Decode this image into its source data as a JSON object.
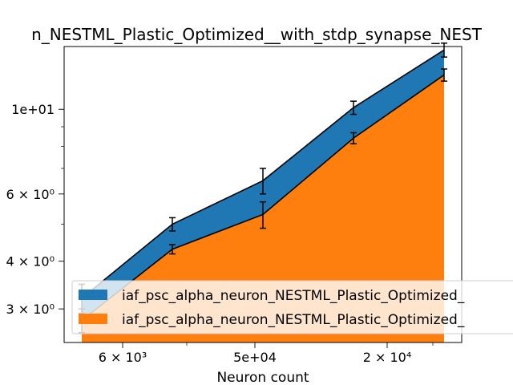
{
  "chart_data": {
    "type": "area",
    "title": "n_NESTML_Plastic_Optimized__with_stdp_synapse_NEST",
    "xlabel": "Neuron count",
    "ylabel": "",
    "x_scale": "log",
    "y_scale": "log",
    "x_tick_labels": [
      "6 × 10³",
      "5e+04",
      "2 × 10⁴"
    ],
    "y_tick_labels": [
      "3 × 10⁰",
      "4 × 10⁰",
      "6 × 10⁰",
      "1e+01"
    ],
    "y_tick_values": [
      3,
      4,
      6,
      10
    ],
    "ylim": [
      2.45,
      14.6
    ],
    "series": [
      {
        "name": "iaf_psc_alpha_neuron_NESTML_Plastic_Optimized_",
        "color": "#1f77b4",
        "values": [
          3.2,
          5.0,
          6.5,
          10.1,
          14.3
        ],
        "errors": [
          0.28,
          0.2,
          0.5,
          0.4,
          0.6
        ]
      },
      {
        "name": "iaf_psc_alpha_neuron_NESTML_Plastic_Optimized_",
        "color": "#ff7f0e",
        "values": [
          2.8,
          4.3,
          5.3,
          8.4,
          12.3
        ],
        "errors": [
          0.2,
          0.12,
          0.42,
          0.28,
          0.45
        ]
      }
    ],
    "legend_position": "lower-right",
    "grid": false
  }
}
